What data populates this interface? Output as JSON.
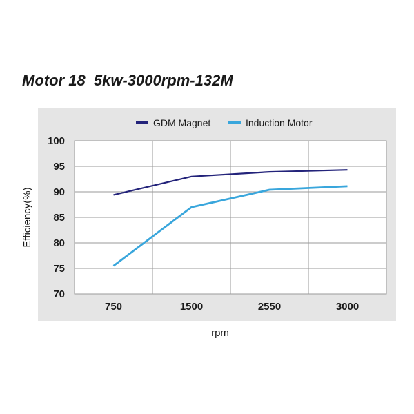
{
  "chart_data": {
    "type": "line",
    "title": "Motor 18  5kw-3000rpm-132M",
    "xlabel": "rpm",
    "ylabel": "Efficiency(%)",
    "categories": [
      "750",
      "1500",
      "2550",
      "3000"
    ],
    "ylim": [
      70,
      100
    ],
    "yticks": [
      "70",
      "75",
      "80",
      "85",
      "90",
      "95",
      "100"
    ],
    "grid": true,
    "legend_position": "top",
    "series": [
      {
        "name": "GDM Magnet",
        "color": "#23237a",
        "values": [
          89.4,
          93.0,
          93.9,
          94.3
        ]
      },
      {
        "name": "Induction Motor",
        "color": "#39a6dc",
        "values": [
          75.5,
          87.0,
          90.4,
          91.1
        ]
      }
    ]
  }
}
